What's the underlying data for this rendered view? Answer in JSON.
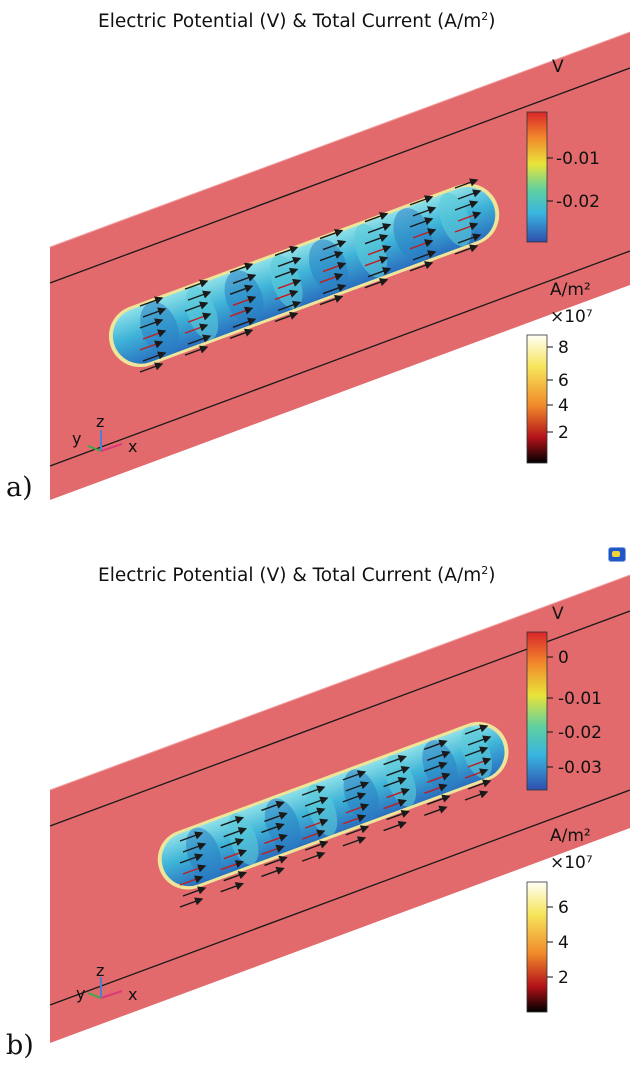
{
  "panels": [
    {
      "id": "a",
      "label": "a)",
      "title_prefix": "Electric Potential (V) & Total Current (A/m",
      "title_sup": "2",
      "title_suffix": ")",
      "potential_legend": {
        "unit": "V",
        "ticks": [
          "-0.01",
          "-0.02"
        ]
      },
      "current_legend": {
        "unit": "A/m²",
        "scale": "×10⁷",
        "ticks": [
          "8",
          "6",
          "4",
          "2"
        ]
      },
      "axes_triad": [
        "y",
        "z",
        "x"
      ]
    },
    {
      "id": "b",
      "label": "b)",
      "title_prefix": "Electric Potential (V) & Total Current (A/m",
      "title_sup": "2",
      "title_suffix": ")",
      "potential_legend": {
        "unit": "V",
        "ticks": [
          "0",
          "-0.01",
          "-0.02",
          "-0.03"
        ]
      },
      "current_legend": {
        "unit": "A/m²",
        "scale": "×10⁷",
        "ticks": [
          "6",
          "4",
          "2"
        ]
      },
      "axes_triad": [
        "y",
        "z",
        "x"
      ]
    }
  ],
  "colors": {
    "electrode": "#e26a6c",
    "electrode_edge": "#1a1a1a",
    "fiber_body": "#3eb5d6",
    "fiber_shade": "#2a7fc2",
    "arrow": "#1a1a1a",
    "arrow_red": "#c21c1c"
  }
}
